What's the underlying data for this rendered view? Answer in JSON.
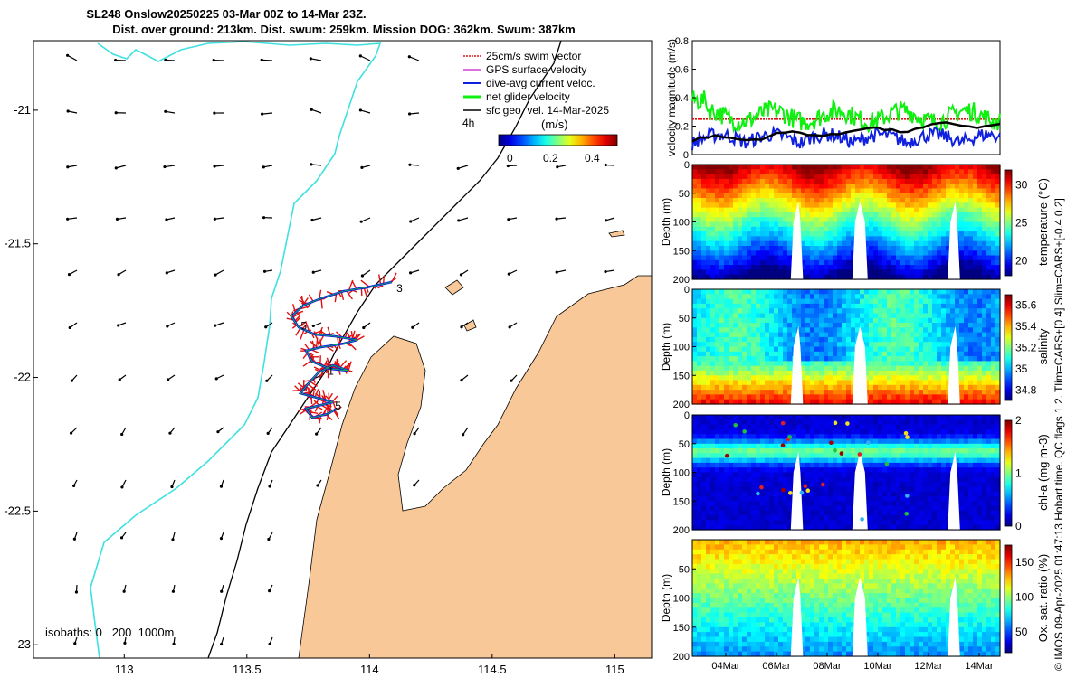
{
  "title": {
    "line1": "SL248 Onslow20250225 03-Mar 00Z to 14-Mar 23Z.",
    "line2": "Dist. over ground: 213km. Dist. swum: 259km. Mission DOG: 362km. Swum: 387km"
  },
  "credit": "© IMOS 09-Apr-2025 01:47:13 Hobart time. QC flags 1  2. Tlim=CARS+[0 4] Slim=CARS+[-0.4 0.2]",
  "colors": {
    "land": "#f9c898",
    "coast_cyan": "#3ee0e0",
    "swim": "#e01010",
    "track": "#1020e0",
    "net": "#10f010"
  },
  "chart_data": [
    {
      "type": "map",
      "xticks": [
        "113",
        "113.5",
        "114",
        "114.5",
        "115"
      ],
      "yticks": [
        "-21",
        "-21.5",
        "-22",
        "-22.5",
        "-23"
      ],
      "xlim": [
        112.63,
        115.15
      ],
      "ylim": [
        -23.05,
        -20.74
      ],
      "legend": [
        "25cm/s swim vector",
        "GPS surface velocity",
        "dive-avg current veloc.",
        "net glider velocity",
        "sfc geo. vel. 14-Mar-2025"
      ],
      "legend_sub": "4h",
      "colorbar_label": "(m/s)",
      "colorbar_ticks": [
        "0",
        "0.2",
        "0.4"
      ],
      "isobaths_label": "isobaths: 0   200  1000m",
      "waypoints": [
        {
          "label": "3",
          "lon": 114.11,
          "lat": -21.68
        },
        {
          "label": "5",
          "lon": 113.72,
          "lat": -21.82
        },
        {
          "label": "1",
          "lon": 113.83,
          "lat": -21.99
        },
        {
          "label": "5",
          "lon": 113.86,
          "lat": -22.12
        }
      ]
    },
    {
      "type": "line",
      "ylabel": "velocity magnitude (m/s)",
      "yticks": [
        "0",
        "0.2",
        "0.4",
        "0.6",
        "0.8"
      ],
      "ylim": [
        0,
        0.8
      ],
      "series_names": [
        "25cm/s swim vector",
        "net glider velocity",
        "dive-avg current veloc.",
        "sfc geo. vel."
      ]
    },
    {
      "type": "heatmap",
      "variable": "temperature",
      "ylabel": "Depth (m)",
      "yticks": [
        "0",
        "50",
        "100",
        "150",
        "200"
      ],
      "cbar_label": "temperature (°C)",
      "cbar_ticks": [
        "20",
        "25",
        "30"
      ],
      "cbar_range": [
        18,
        32
      ]
    },
    {
      "type": "heatmap",
      "variable": "salinity",
      "ylabel": "Depth (m)",
      "yticks": [
        "0",
        "50",
        "100",
        "150",
        "200"
      ],
      "cbar_label": "salinity",
      "cbar_ticks": [
        "34.8",
        "35",
        "35.2",
        "35.4",
        "35.6"
      ],
      "cbar_range": [
        34.7,
        35.7
      ]
    },
    {
      "type": "heatmap",
      "variable": "chl-a",
      "ylabel": "Depth (m)",
      "yticks": [
        "0",
        "50",
        "100",
        "150",
        "200"
      ],
      "cbar_label": "chl-a (mg m-3)",
      "cbar_ticks": [
        "0",
        "1",
        "2"
      ],
      "cbar_range": [
        0,
        2
      ]
    },
    {
      "type": "heatmap",
      "variable": "oxygen",
      "ylabel": "Depth (m)",
      "yticks": [
        "50",
        "100",
        "150",
        "200"
      ],
      "cbar_label": "Ox. sat. ratio (%)",
      "cbar_ticks": [
        "50",
        "100",
        "150"
      ],
      "cbar_range": [
        20,
        175
      ],
      "xticks": [
        "04Mar",
        "06Mar",
        "08Mar",
        "10Mar",
        "12Mar",
        "14Mar"
      ]
    }
  ]
}
